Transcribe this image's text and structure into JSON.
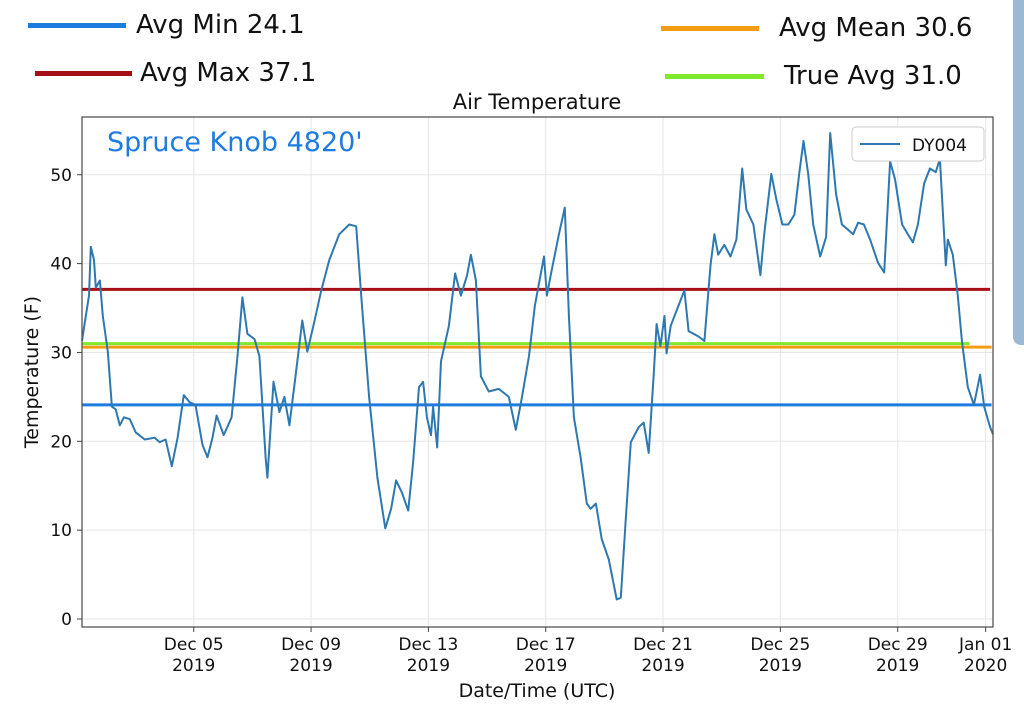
{
  "header_legend": [
    {
      "id": "min",
      "label": "Avg Min 24.1",
      "value": 24.1,
      "color": "#1e7be0"
    },
    {
      "id": "max",
      "label": "Avg Max 37.1",
      "value": 37.1,
      "color": "#a50f15"
    },
    {
      "id": "mean",
      "label": "Avg Mean 30.6",
      "value": 30.6,
      "color": "#f39c12"
    },
    {
      "id": "true",
      "label": "True Avg 31.0",
      "value": 31.0,
      "color": "#7fea2b"
    }
  ],
  "chart_data": {
    "type": "line",
    "title": "Air Temperature",
    "annotation": "Spruce Knob 4820'",
    "annotation_color": "#1e7be0",
    "xlabel": "Date/Time (UTC)",
    "ylabel": "Temperature (F)",
    "x_units": "days since 2019-12-01 00:00 UTC",
    "xlim": [
      0.19,
      31.25
    ],
    "ylim": [
      -0.9,
      56.5
    ],
    "grid": true,
    "legend_position": "top-right",
    "yticks": [
      0,
      10,
      20,
      30,
      40,
      50
    ],
    "ytick_labels": [
      "0",
      "10",
      "20",
      "30",
      "40",
      "50"
    ],
    "xticks": [
      {
        "day": 4,
        "label1": "Dec 05",
        "label2": "2019"
      },
      {
        "day": 8,
        "label1": "Dec 09",
        "label2": "2019"
      },
      {
        "day": 12,
        "label1": "Dec 13",
        "label2": "2019"
      },
      {
        "day": 16,
        "label1": "Dec 17",
        "label2": "2019"
      },
      {
        "day": 20,
        "label1": "Dec 21",
        "label2": "2019"
      },
      {
        "day": 24,
        "label1": "Dec 25",
        "label2": "2019"
      },
      {
        "day": 28,
        "label1": "Dec 29",
        "label2": "2019"
      },
      {
        "day": 31,
        "label1": "Jan 01",
        "label2": "2020"
      }
    ],
    "series": [
      {
        "name": "DY004",
        "color": "#2e78b0",
        "points": [
          [
            0.19,
            31.3
          ],
          [
            0.32,
            34.1
          ],
          [
            0.43,
            36.4
          ],
          [
            0.49,
            41.9
          ],
          [
            0.6,
            40.4
          ],
          [
            0.66,
            37.3
          ],
          [
            0.8,
            38.1
          ],
          [
            0.9,
            34.1
          ],
          [
            1.07,
            30.1
          ],
          [
            1.21,
            23.9
          ],
          [
            1.34,
            23.6
          ],
          [
            1.48,
            21.8
          ],
          [
            1.62,
            22.7
          ],
          [
            1.82,
            22.5
          ],
          [
            2.02,
            21.0
          ],
          [
            2.33,
            20.2
          ],
          [
            2.67,
            20.4
          ],
          [
            2.84,
            19.9
          ],
          [
            3.04,
            20.2
          ],
          [
            3.25,
            17.2
          ],
          [
            3.45,
            20.4
          ],
          [
            3.66,
            25.2
          ],
          [
            3.86,
            24.4
          ],
          [
            4.06,
            24.1
          ],
          [
            4.3,
            19.6
          ],
          [
            4.47,
            18.2
          ],
          [
            4.64,
            20.4
          ],
          [
            4.78,
            22.9
          ],
          [
            5.02,
            20.7
          ],
          [
            5.29,
            22.7
          ],
          [
            5.49,
            29.6
          ],
          [
            5.66,
            36.2
          ],
          [
            5.83,
            32.1
          ],
          [
            6.07,
            31.5
          ],
          [
            6.24,
            29.6
          ],
          [
            6.45,
            18.2
          ],
          [
            6.51,
            15.9
          ],
          [
            6.72,
            26.7
          ],
          [
            6.92,
            23.3
          ],
          [
            7.09,
            25.0
          ],
          [
            7.26,
            21.8
          ],
          [
            7.47,
            27.3
          ],
          [
            7.7,
            33.6
          ],
          [
            7.87,
            30.1
          ],
          [
            8.08,
            33.0
          ],
          [
            8.35,
            37.0
          ],
          [
            8.62,
            40.4
          ],
          [
            8.96,
            43.3
          ],
          [
            9.3,
            44.4
          ],
          [
            9.54,
            44.2
          ],
          [
            9.71,
            36.4
          ],
          [
            9.98,
            25.0
          ],
          [
            10.26,
            15.9
          ],
          [
            10.53,
            10.2
          ],
          [
            10.73,
            12.4
          ],
          [
            10.9,
            15.6
          ],
          [
            11.1,
            14.2
          ],
          [
            11.31,
            12.2
          ],
          [
            11.48,
            17.6
          ],
          [
            11.68,
            26.1
          ],
          [
            11.82,
            26.7
          ],
          [
            11.95,
            22.7
          ],
          [
            12.09,
            20.7
          ],
          [
            12.16,
            23.9
          ],
          [
            12.3,
            19.3
          ],
          [
            12.43,
            29.0
          ],
          [
            12.7,
            33.0
          ],
          [
            12.91,
            38.9
          ],
          [
            13.11,
            36.4
          ],
          [
            13.32,
            38.7
          ],
          [
            13.45,
            41.0
          ],
          [
            13.62,
            38.1
          ],
          [
            13.79,
            27.3
          ],
          [
            14.06,
            25.6
          ],
          [
            14.4,
            25.9
          ],
          [
            14.74,
            25.0
          ],
          [
            14.98,
            21.3
          ],
          [
            15.19,
            25.0
          ],
          [
            15.43,
            29.6
          ],
          [
            15.63,
            35.3
          ],
          [
            15.94,
            40.8
          ],
          [
            16.04,
            36.4
          ],
          [
            16.17,
            38.7
          ],
          [
            16.45,
            43.3
          ],
          [
            16.65,
            46.3
          ],
          [
            16.79,
            34.1
          ],
          [
            16.96,
            22.7
          ],
          [
            17.19,
            18.2
          ],
          [
            17.4,
            13.0
          ],
          [
            17.53,
            12.4
          ],
          [
            17.71,
            13.0
          ],
          [
            17.91,
            9.0
          ],
          [
            18.15,
            6.7
          ],
          [
            18.42,
            2.2
          ],
          [
            18.56,
            2.4
          ],
          [
            18.73,
            11.3
          ],
          [
            18.9,
            19.9
          ],
          [
            19.17,
            21.6
          ],
          [
            19.34,
            22.1
          ],
          [
            19.51,
            18.7
          ],
          [
            19.68,
            27.3
          ],
          [
            19.78,
            33.2
          ],
          [
            19.91,
            30.7
          ],
          [
            20.05,
            34.1
          ],
          [
            20.12,
            29.9
          ],
          [
            20.26,
            33.0
          ],
          [
            20.53,
            35.3
          ],
          [
            20.73,
            37.0
          ],
          [
            20.87,
            32.4
          ],
          [
            21.21,
            31.8
          ],
          [
            21.41,
            31.3
          ],
          [
            21.62,
            39.8
          ],
          [
            21.75,
            43.3
          ],
          [
            21.88,
            41.0
          ],
          [
            22.09,
            42.1
          ],
          [
            22.3,
            40.8
          ],
          [
            22.5,
            42.7
          ],
          [
            22.7,
            50.7
          ],
          [
            22.84,
            46.1
          ],
          [
            23.08,
            44.4
          ],
          [
            23.32,
            38.7
          ],
          [
            23.45,
            43.3
          ],
          [
            23.69,
            50.1
          ],
          [
            23.86,
            47.3
          ],
          [
            24.07,
            44.4
          ],
          [
            24.27,
            44.4
          ],
          [
            24.48,
            45.5
          ],
          [
            24.65,
            50.3
          ],
          [
            24.79,
            53.8
          ],
          [
            24.95,
            50.1
          ],
          [
            25.12,
            44.4
          ],
          [
            25.36,
            40.8
          ],
          [
            25.56,
            43.0
          ],
          [
            25.7,
            54.7
          ],
          [
            25.9,
            47.8
          ],
          [
            26.1,
            44.4
          ],
          [
            26.31,
            43.8
          ],
          [
            26.48,
            43.3
          ],
          [
            26.65,
            44.6
          ],
          [
            26.85,
            44.4
          ],
          [
            27.06,
            42.7
          ],
          [
            27.33,
            40.1
          ],
          [
            27.54,
            39.0
          ],
          [
            27.74,
            51.5
          ],
          [
            27.91,
            49.5
          ],
          [
            28.15,
            44.4
          ],
          [
            28.35,
            43.3
          ],
          [
            28.52,
            42.4
          ],
          [
            28.69,
            44.4
          ],
          [
            28.9,
            49.0
          ],
          [
            29.1,
            50.7
          ],
          [
            29.3,
            50.3
          ],
          [
            29.44,
            51.8
          ],
          [
            29.64,
            39.8
          ],
          [
            29.71,
            42.7
          ],
          [
            29.88,
            41.0
          ],
          [
            30.05,
            36.4
          ],
          [
            30.19,
            31.3
          ],
          [
            30.39,
            26.1
          ],
          [
            30.6,
            24.1
          ],
          [
            30.81,
            27.5
          ],
          [
            30.95,
            23.9
          ],
          [
            31.15,
            21.6
          ],
          [
            31.25,
            20.8
          ]
        ]
      }
    ],
    "reference_lines": [
      {
        "name": "Avg Min",
        "value": 24.1,
        "color": "#1e7be0",
        "x_end": 31.2
      },
      {
        "name": "Avg Max",
        "value": 37.1,
        "color": "#a50f15",
        "x_end": 31.15
      },
      {
        "name": "Avg Mean",
        "value": 30.6,
        "color": "#f39c12",
        "x_end": 31.2
      },
      {
        "name": "True Avg",
        "value": 31.0,
        "color": "#7fea2b",
        "x_end": 30.45
      }
    ]
  }
}
